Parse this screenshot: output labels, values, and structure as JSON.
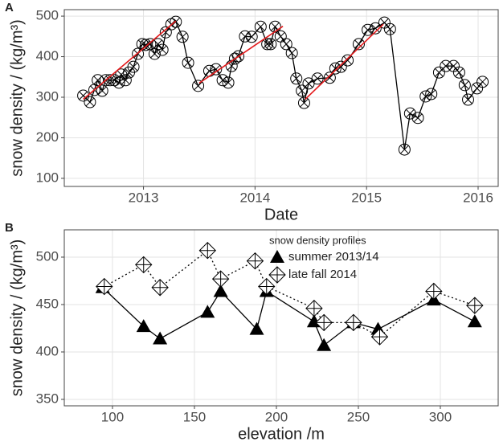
{
  "chart_data": [
    {
      "type": "line",
      "panel_label": "A",
      "x_label": "Date",
      "y_label": "snow density / (kg/m³)",
      "grid": true,
      "xlim": [
        2012.29,
        2016.18
      ],
      "ylim": [
        80,
        516
      ],
      "xticks": [
        2013,
        2014,
        2015,
        2016
      ],
      "yticks": [
        100,
        200,
        300,
        400,
        500
      ],
      "series": [
        {
          "color": "#000000",
          "marker": "circle-x",
          "linestyle": "solid",
          "x": [
            2012.46,
            2012.52,
            2012.56,
            2012.59,
            2012.63,
            2012.66,
            2012.7,
            2012.74,
            2012.78,
            2012.8,
            2012.84,
            2012.87,
            2012.91,
            2012.95,
            2012.99,
            2013.02,
            2013.06,
            2013.1,
            2013.13,
            2013.17,
            2013.2,
            2013.25,
            2013.29,
            2013.35,
            2013.4,
            2013.49,
            2013.59,
            2013.65,
            2013.71,
            2013.76,
            2013.79,
            2013.82,
            2013.85,
            2013.91,
            2013.97,
            2014.05,
            2014.11,
            2014.14,
            2014.18,
            2014.23,
            2014.28,
            2014.33,
            2014.37,
            2014.42,
            2014.44,
            2014.48,
            2014.56,
            2014.67,
            2014.72,
            2014.77,
            2014.83,
            2014.93,
            2015.01,
            2015.08,
            2015.16,
            2015.21,
            2015.34,
            2015.39,
            2015.46,
            2015.53,
            2015.58,
            2015.65,
            2015.71,
            2015.78,
            2015.83,
            2015.88,
            2015.91,
            2015.99,
            2016.04
          ],
          "values": [
            304,
            288,
            318,
            342,
            316,
            342,
            342,
            342,
            336,
            356,
            342,
            361,
            375,
            407,
            431,
            429,
            431,
            407,
            431,
            417,
            460,
            480,
            486,
            449,
            385,
            328,
            365,
            369,
            342,
            336,
            377,
            395,
            401,
            450,
            449,
            474,
            431,
            431,
            474,
            450,
            431,
            409,
            346,
            316,
            286,
            334,
            346,
            348,
            371,
            375,
            391,
            431,
            466,
            470,
            484,
            468,
            171,
            260,
            249,
            302,
            308,
            361,
            377,
            377,
            361,
            330,
            294,
            322,
            338
          ]
        },
        {
          "color": "#e41a1c",
          "marker": "none",
          "linestyle": "solid",
          "x": [
            2012.46,
            2013.29,
            null,
            2013.5,
            2014.25,
            null,
            2014.45,
            2015.15
          ],
          "values": [
            295,
            488,
            null,
            335,
            475,
            null,
            295,
            480
          ]
        }
      ]
    },
    {
      "type": "line",
      "panel_label": "B",
      "x_label": "elevation /m",
      "y_label": "snow density / (kg/m³)",
      "grid": true,
      "xlim": [
        70.6,
        335.3
      ],
      "ylim": [
        343.2,
        528.8
      ],
      "xticks": [
        100,
        150,
        200,
        250,
        300
      ],
      "yticks": [
        350,
        400,
        450,
        500
      ],
      "legend": "top",
      "legend_title": "snow density profiles",
      "series": [
        {
          "name": "summer 2013/14",
          "color": "#000000",
          "marker": "triangle",
          "linestyle": "solid",
          "x": [
            94,
            119,
            129,
            158,
            166,
            188,
            194,
            223,
            229,
            247,
            262,
            296,
            321
          ],
          "values": [
            468,
            427,
            414,
            442,
            464,
            424,
            464,
            432,
            407,
            431,
            424,
            455,
            432
          ]
        },
        {
          "name": "late fall 2014",
          "color": "#000000",
          "marker": "diamond-plus",
          "linestyle": "dotted",
          "x": [
            95,
            119,
            129,
            158,
            166,
            187,
            194,
            223,
            229,
            247,
            263,
            296,
            321
          ],
          "values": [
            469,
            492,
            468,
            507,
            477,
            496,
            469,
            446,
            431,
            431,
            416,
            464,
            449
          ]
        }
      ]
    }
  ]
}
